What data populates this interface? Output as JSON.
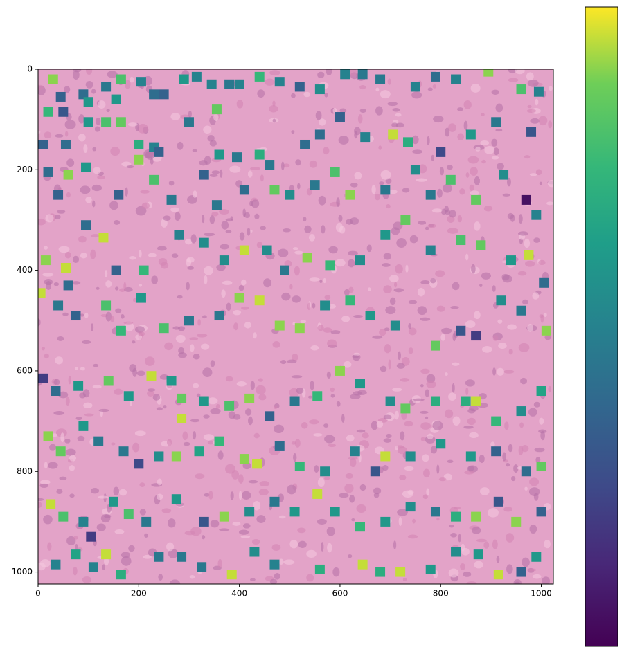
{
  "chart_data": {
    "type": "scatter",
    "x": [
      30,
      45,
      20,
      50,
      90,
      100,
      135,
      165,
      155,
      205,
      230,
      250,
      290,
      315,
      345,
      380,
      400,
      440,
      480,
      520,
      560,
      610,
      645,
      680,
      750,
      790,
      830,
      895,
      960,
      995,
      10,
      55,
      100,
      135,
      165,
      200,
      230,
      240,
      300,
      355,
      360,
      395,
      440,
      460,
      530,
      560,
      600,
      650,
      705,
      735,
      800,
      860,
      910,
      980,
      20,
      40,
      60,
      95,
      160,
      200,
      230,
      265,
      330,
      355,
      410,
      470,
      500,
      550,
      590,
      620,
      690,
      750,
      780,
      820,
      870,
      925,
      970,
      990,
      15,
      55,
      60,
      95,
      130,
      155,
      210,
      280,
      330,
      370,
      410,
      455,
      490,
      535,
      580,
      640,
      690,
      730,
      780,
      840,
      880,
      940,
      975,
      1005,
      5,
      40,
      75,
      135,
      165,
      205,
      250,
      300,
      360,
      400,
      440,
      480,
      520,
      570,
      620,
      660,
      710,
      790,
      840,
      870,
      920,
      960,
      1010,
      10,
      35,
      80,
      140,
      180,
      225,
      265,
      285,
      285,
      330,
      380,
      420,
      460,
      510,
      555,
      600,
      640,
      700,
      730,
      790,
      850,
      870,
      910,
      960,
      1000,
      20,
      45,
      90,
      120,
      170,
      200,
      240,
      275,
      320,
      360,
      410,
      435,
      480,
      520,
      570,
      630,
      670,
      690,
      740,
      800,
      860,
      910,
      970,
      1000,
      25,
      50,
      90,
      105,
      150,
      180,
      215,
      275,
      330,
      370,
      420,
      470,
      510,
      555,
      590,
      640,
      690,
      740,
      790,
      830,
      870,
      915,
      950,
      1000,
      35,
      75,
      110,
      135,
      165,
      240,
      285,
      325,
      385,
      430,
      470,
      560,
      645,
      680,
      720,
      780,
      830,
      875,
      915,
      960,
      990
    ],
    "values": [
      20,
      55,
      85,
      85,
      50,
      65,
      35,
      20,
      60,
      25,
      50,
      50,
      20,
      15,
      30,
      30,
      30,
      15,
      25,
      35,
      40,
      10,
      10,
      20,
      35,
      15,
      20,
      5,
      40,
      45,
      150,
      150,
      105,
      105,
      105,
      150,
      155,
      165,
      105,
      80,
      170,
      175,
      170,
      190,
      150,
      130,
      95,
      135,
      130,
      145,
      165,
      130,
      105,
      125,
      205,
      250,
      210,
      195,
      250,
      180,
      220,
      260,
      210,
      270,
      240,
      240,
      250,
      230,
      205,
      250,
      240,
      200,
      250,
      220,
      260,
      210,
      260,
      290,
      380,
      395,
      430,
      310,
      335,
      400,
      400,
      330,
      345,
      380,
      360,
      360,
      400,
      375,
      390,
      380,
      330,
      300,
      360,
      340,
      350,
      380,
      370,
      425,
      445,
      470,
      490,
      470,
      520,
      455,
      515,
      500,
      490,
      455,
      460,
      510,
      515,
      470,
      460,
      490,
      510,
      550,
      520,
      530,
      460,
      480,
      520,
      615,
      640,
      630,
      620,
      650,
      610,
      620,
      655,
      695,
      660,
      670,
      655,
      690,
      660,
      650,
      600,
      625,
      660,
      675,
      660,
      660,
      660,
      700,
      680,
      640,
      730,
      760,
      710,
      740,
      760,
      785,
      770,
      770,
      760,
      740,
      775,
      785,
      750,
      790,
      800,
      760,
      800,
      770,
      770,
      745,
      770,
      760,
      800,
      790,
      865,
      890,
      900,
      930,
      860,
      885,
      900,
      855,
      900,
      890,
      880,
      860,
      880,
      845,
      880,
      910,
      900,
      870,
      880,
      890,
      890,
      860,
      900,
      880,
      985,
      965,
      990,
      965,
      1005,
      970,
      970,
      990,
      1005,
      960,
      985,
      995,
      985,
      1000,
      1000,
      995,
      960,
      965,
      1005,
      1000,
      970
    ],
    "color_values": [
      0.9,
      0.35,
      0.75,
      0.3,
      0.4,
      0.6,
      0.45,
      0.8,
      0.6,
      0.5,
      0.4,
      0.35,
      0.6,
      0.5,
      0.5,
      0.45,
      0.5,
      0.75,
      0.5,
      0.35,
      0.55,
      0.5,
      0.45,
      0.45,
      0.5,
      0.4,
      0.5,
      0.9,
      0.8,
      0.5,
      0.35,
      0.4,
      0.6,
      0.8,
      0.85,
      0.7,
      0.5,
      0.35,
      0.45,
      0.85,
      0.6,
      0.45,
      0.7,
      0.45,
      0.4,
      0.4,
      0.35,
      0.5,
      0.95,
      0.7,
      0.25,
      0.6,
      0.45,
      0.3,
      0.4,
      0.35,
      0.9,
      0.6,
      0.35,
      0.9,
      0.8,
      0.45,
      0.35,
      0.45,
      0.4,
      0.85,
      0.55,
      0.45,
      0.8,
      0.9,
      0.45,
      0.55,
      0.45,
      0.8,
      0.85,
      0.55,
      0.05,
      0.5,
      0.9,
      0.95,
      0.4,
      0.4,
      0.95,
      0.35,
      0.75,
      0.5,
      0.55,
      0.55,
      0.95,
      0.55,
      0.45,
      0.9,
      0.75,
      0.55,
      0.6,
      0.85,
      0.5,
      0.8,
      0.85,
      0.6,
      0.95,
      0.4,
      0.95,
      0.45,
      0.35,
      0.8,
      0.75,
      0.6,
      0.8,
      0.45,
      0.45,
      0.9,
      0.95,
      0.9,
      0.9,
      0.55,
      0.75,
      0.6,
      0.55,
      0.85,
      0.3,
      0.2,
      0.55,
      0.45,
      0.9,
      0.2,
      0.4,
      0.6,
      0.85,
      0.6,
      0.95,
      0.6,
      0.85,
      0.95,
      0.6,
      0.8,
      0.9,
      0.35,
      0.45,
      0.75,
      0.9,
      0.6,
      0.55,
      0.85,
      0.7,
      0.7,
      0.95,
      0.75,
      0.55,
      0.65,
      0.9,
      0.85,
      0.6,
      0.45,
      0.45,
      0.25,
      0.55,
      0.9,
      0.65,
      0.75,
      0.9,
      0.95,
      0.4,
      0.75,
      0.55,
      0.5,
      0.3,
      0.95,
      0.55,
      0.6,
      0.6,
      0.35,
      0.4,
      0.85,
      0.95,
      0.8,
      0.5,
      0.2,
      0.6,
      0.8,
      0.45,
      0.6,
      0.3,
      0.9,
      0.55,
      0.45,
      0.6,
      0.95,
      0.6,
      0.75,
      0.6,
      0.55,
      0.45,
      0.7,
      0.9,
      0.3,
      0.9,
      0.35,
      0.5,
      0.65,
      0.5,
      0.95,
      0.7,
      0.45,
      0.45,
      0.45,
      0.95,
      0.55,
      0.5,
      0.7,
      0.95,
      0.7,
      0.95,
      0.6,
      0.55,
      0.6,
      0.95,
      0.35,
      0.6
    ],
    "colormap": "viridis",
    "clim": [
      0,
      1
    ],
    "xlim": [
      0,
      1024
    ],
    "ylim": [
      1024,
      0
    ],
    "xticks": [
      0,
      200,
      400,
      600,
      800,
      1000
    ],
    "yticks": [
      0,
      200,
      400,
      600,
      800,
      1000
    ]
  }
}
